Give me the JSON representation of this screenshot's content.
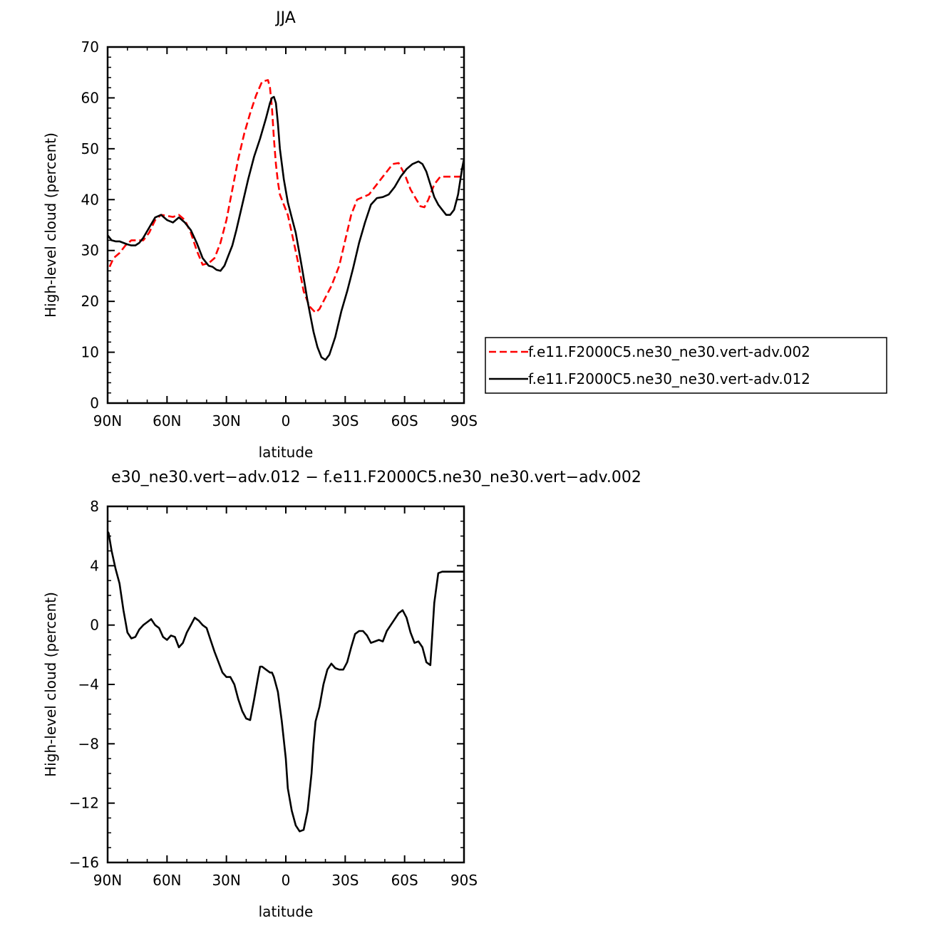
{
  "chart_data": [
    {
      "type": "line",
      "title": "JJA",
      "xlabel": "latitude",
      "ylabel": "High-level cloud (percent)",
      "xlim": [
        -90,
        90
      ],
      "ylim": [
        0,
        70
      ],
      "x_ticks": [
        -90,
        -60,
        -30,
        0,
        30,
        60,
        90
      ],
      "x_tick_labels": [
        "90N",
        "60N",
        "30N",
        "0",
        "30S",
        "60S",
        "90S"
      ],
      "y_ticks": [
        0,
        10,
        20,
        30,
        40,
        50,
        60,
        70
      ],
      "y_tick_labels": [
        "0",
        "10",
        "20",
        "30",
        "40",
        "50",
        "60",
        "70"
      ],
      "legend_placement": "right",
      "series": [
        {
          "name": "f.e11.F2000C5.ne30_ne30.vert-adv.002",
          "color": "#ff0000",
          "dash": "dashed",
          "x": [
            -89,
            -87,
            -84,
            -81,
            -78,
            -75,
            -72,
            -69,
            -66,
            -63,
            -60,
            -57,
            -54,
            -51,
            -48,
            -45,
            -42,
            -39,
            -36,
            -33,
            -30,
            -27,
            -24,
            -21,
            -18,
            -15,
            -12,
            -9,
            -8,
            -7,
            -6,
            -5,
            -4,
            -3,
            -1,
            1,
            3,
            6,
            9,
            12,
            15,
            17,
            19,
            21,
            23,
            27,
            30,
            33,
            36,
            39,
            42,
            45,
            48,
            51,
            54,
            57,
            60,
            63,
            66,
            68,
            70,
            72,
            75,
            78,
            81,
            83,
            85,
            87,
            89
          ],
          "y": [
            26.8,
            28.5,
            29.5,
            31.0,
            32.0,
            32.0,
            32.0,
            33.5,
            36.0,
            37.0,
            36.8,
            36.6,
            37.0,
            36.0,
            33.5,
            30.0,
            27.2,
            27.5,
            28.5,
            31.5,
            36.0,
            42.0,
            48.0,
            53.0,
            57.0,
            60.5,
            63.2,
            63.5,
            62.0,
            58.0,
            52.0,
            47.0,
            43.5,
            41.0,
            39.0,
            37.0,
            33.5,
            28.0,
            22.0,
            19.0,
            17.8,
            18.5,
            20.0,
            21.5,
            23.0,
            27.0,
            32.0,
            37.0,
            40.0,
            40.5,
            41.0,
            42.5,
            44.0,
            45.5,
            47.0,
            47.2,
            45.0,
            42.0,
            40.0,
            38.7,
            38.5,
            40.0,
            43.0,
            44.5,
            44.5,
            44.5,
            44.5,
            44.5,
            44.5
          ]
        },
        {
          "name": "f.e11.F2000C5.ne30_ne30.vert-adv.012",
          "color": "#000000",
          "dash": "solid",
          "x": [
            -90,
            -88,
            -86,
            -84,
            -82,
            -80,
            -78,
            -76,
            -74,
            -72,
            -69,
            -66,
            -63,
            -60,
            -57,
            -54,
            -51,
            -48,
            -45,
            -42,
            -39,
            -37,
            -35,
            -33,
            -31,
            -29,
            -27,
            -25,
            -22,
            -19,
            -16,
            -13,
            -10,
            -9,
            -8,
            -7,
            -6,
            -5,
            -4,
            -3,
            -1,
            1,
            3,
            5,
            8,
            11,
            14,
            16,
            18,
            20,
            22,
            25,
            28,
            31,
            34,
            37,
            40,
            43,
            46,
            49,
            52,
            55,
            58,
            61,
            64,
            67,
            69,
            71,
            73,
            75,
            77,
            79,
            81,
            83,
            85,
            87,
            89,
            90
          ],
          "y": [
            33.0,
            32.0,
            31.8,
            31.8,
            31.5,
            31.2,
            31.0,
            31.0,
            31.5,
            32.5,
            34.5,
            36.5,
            37.0,
            36.0,
            35.5,
            36.5,
            35.5,
            34.0,
            31.5,
            28.5,
            27.0,
            26.8,
            26.2,
            26.0,
            27.0,
            29.0,
            31.0,
            34.0,
            39.0,
            44.0,
            48.5,
            52.0,
            56.0,
            57.5,
            59.0,
            60.0,
            60.2,
            59.0,
            55.0,
            50.0,
            44.0,
            39.5,
            36.5,
            33.5,
            27.0,
            20.0,
            14.0,
            11.0,
            9.0,
            8.5,
            9.5,
            13.0,
            18.0,
            22.0,
            26.5,
            31.5,
            35.5,
            39.0,
            40.3,
            40.5,
            41.0,
            42.5,
            44.5,
            46.0,
            47.0,
            47.5,
            47.0,
            45.5,
            43.0,
            40.5,
            39.0,
            38.0,
            37.0,
            37.0,
            38.0,
            41.0,
            46.0,
            48.0
          ]
        }
      ]
    },
    {
      "type": "line",
      "title": "e30_ne30.vert−adv.012 − f.e11.F2000C5.ne30_ne30.vert−adv.002",
      "xlabel": "latitude",
      "ylabel": "High-level cloud (percent)",
      "xlim": [
        -90,
        90
      ],
      "ylim": [
        -16,
        8
      ],
      "x_ticks": [
        -90,
        -60,
        -30,
        0,
        30,
        60,
        90
      ],
      "x_tick_labels": [
        "90N",
        "60N",
        "30N",
        "0",
        "30S",
        "60S",
        "90S"
      ],
      "y_ticks": [
        -16,
        -12,
        -8,
        -4,
        0,
        4,
        8
      ],
      "y_tick_labels": [
        "−16",
        "−12",
        "−8",
        "−4",
        "0",
        "4",
        "8"
      ],
      "series": [
        {
          "color": "#000000",
          "dash": "solid",
          "x": [
            -90,
            -89.5,
            -88,
            -86,
            -84,
            -82,
            -80,
            -78,
            -76,
            -74,
            -72,
            -70,
            -68,
            -66,
            -64,
            -62,
            -60,
            -58,
            -56,
            -54,
            -52,
            -50,
            -48,
            -46,
            -44,
            -42,
            -40,
            -38,
            -36,
            -34,
            -32,
            -30,
            -28,
            -26,
            -24,
            -22,
            -20,
            -18,
            -16,
            -14,
            -13,
            -12,
            -10,
            -8,
            -7,
            -6,
            -4,
            -2,
            0,
            1,
            3,
            5,
            7,
            9,
            11,
            13,
            14,
            15,
            17,
            19,
            21,
            23,
            25,
            27,
            29,
            31,
            33,
            35,
            37,
            39,
            41,
            43,
            45,
            47,
            49,
            51,
            53,
            55,
            57,
            59,
            61,
            63,
            65,
            67,
            69,
            71,
            73,
            75,
            77,
            79,
            81,
            83,
            85,
            86,
            87,
            88,
            89,
            90
          ],
          "y": [
            6.3,
            6.2,
            5.0,
            3.8,
            2.8,
            1.0,
            -0.5,
            -0.9,
            -0.8,
            -0.3,
            0.0,
            0.2,
            0.4,
            0.0,
            -0.2,
            -0.8,
            -1.0,
            -0.7,
            -0.8,
            -1.5,
            -1.2,
            -0.5,
            0.0,
            0.5,
            0.3,
            0.0,
            -0.2,
            -1.0,
            -1.8,
            -2.5,
            -3.2,
            -3.5,
            -3.5,
            -4.0,
            -5.0,
            -5.8,
            -6.3,
            -6.4,
            -5.0,
            -3.5,
            -2.8,
            -2.8,
            -3.0,
            -3.2,
            -3.2,
            -3.5,
            -4.5,
            -6.5,
            -9.0,
            -11.0,
            -12.5,
            -13.5,
            -13.9,
            -13.8,
            -12.5,
            -10.0,
            -8.0,
            -6.5,
            -5.5,
            -4.0,
            -3.0,
            -2.6,
            -2.9,
            -3.0,
            -3.0,
            -2.5,
            -1.5,
            -0.6,
            -0.4,
            -0.4,
            -0.7,
            -1.2,
            -1.1,
            -1.0,
            -1.1,
            -0.4,
            0.0,
            0.4,
            0.8,
            1.0,
            0.5,
            -0.5,
            -1.2,
            -1.1,
            -1.5,
            -2.5,
            -2.7,
            1.5,
            3.5,
            3.6,
            3.6,
            3.6,
            3.6,
            3.6,
            3.6,
            3.6,
            3.6,
            3.6
          ]
        }
      ]
    }
  ]
}
